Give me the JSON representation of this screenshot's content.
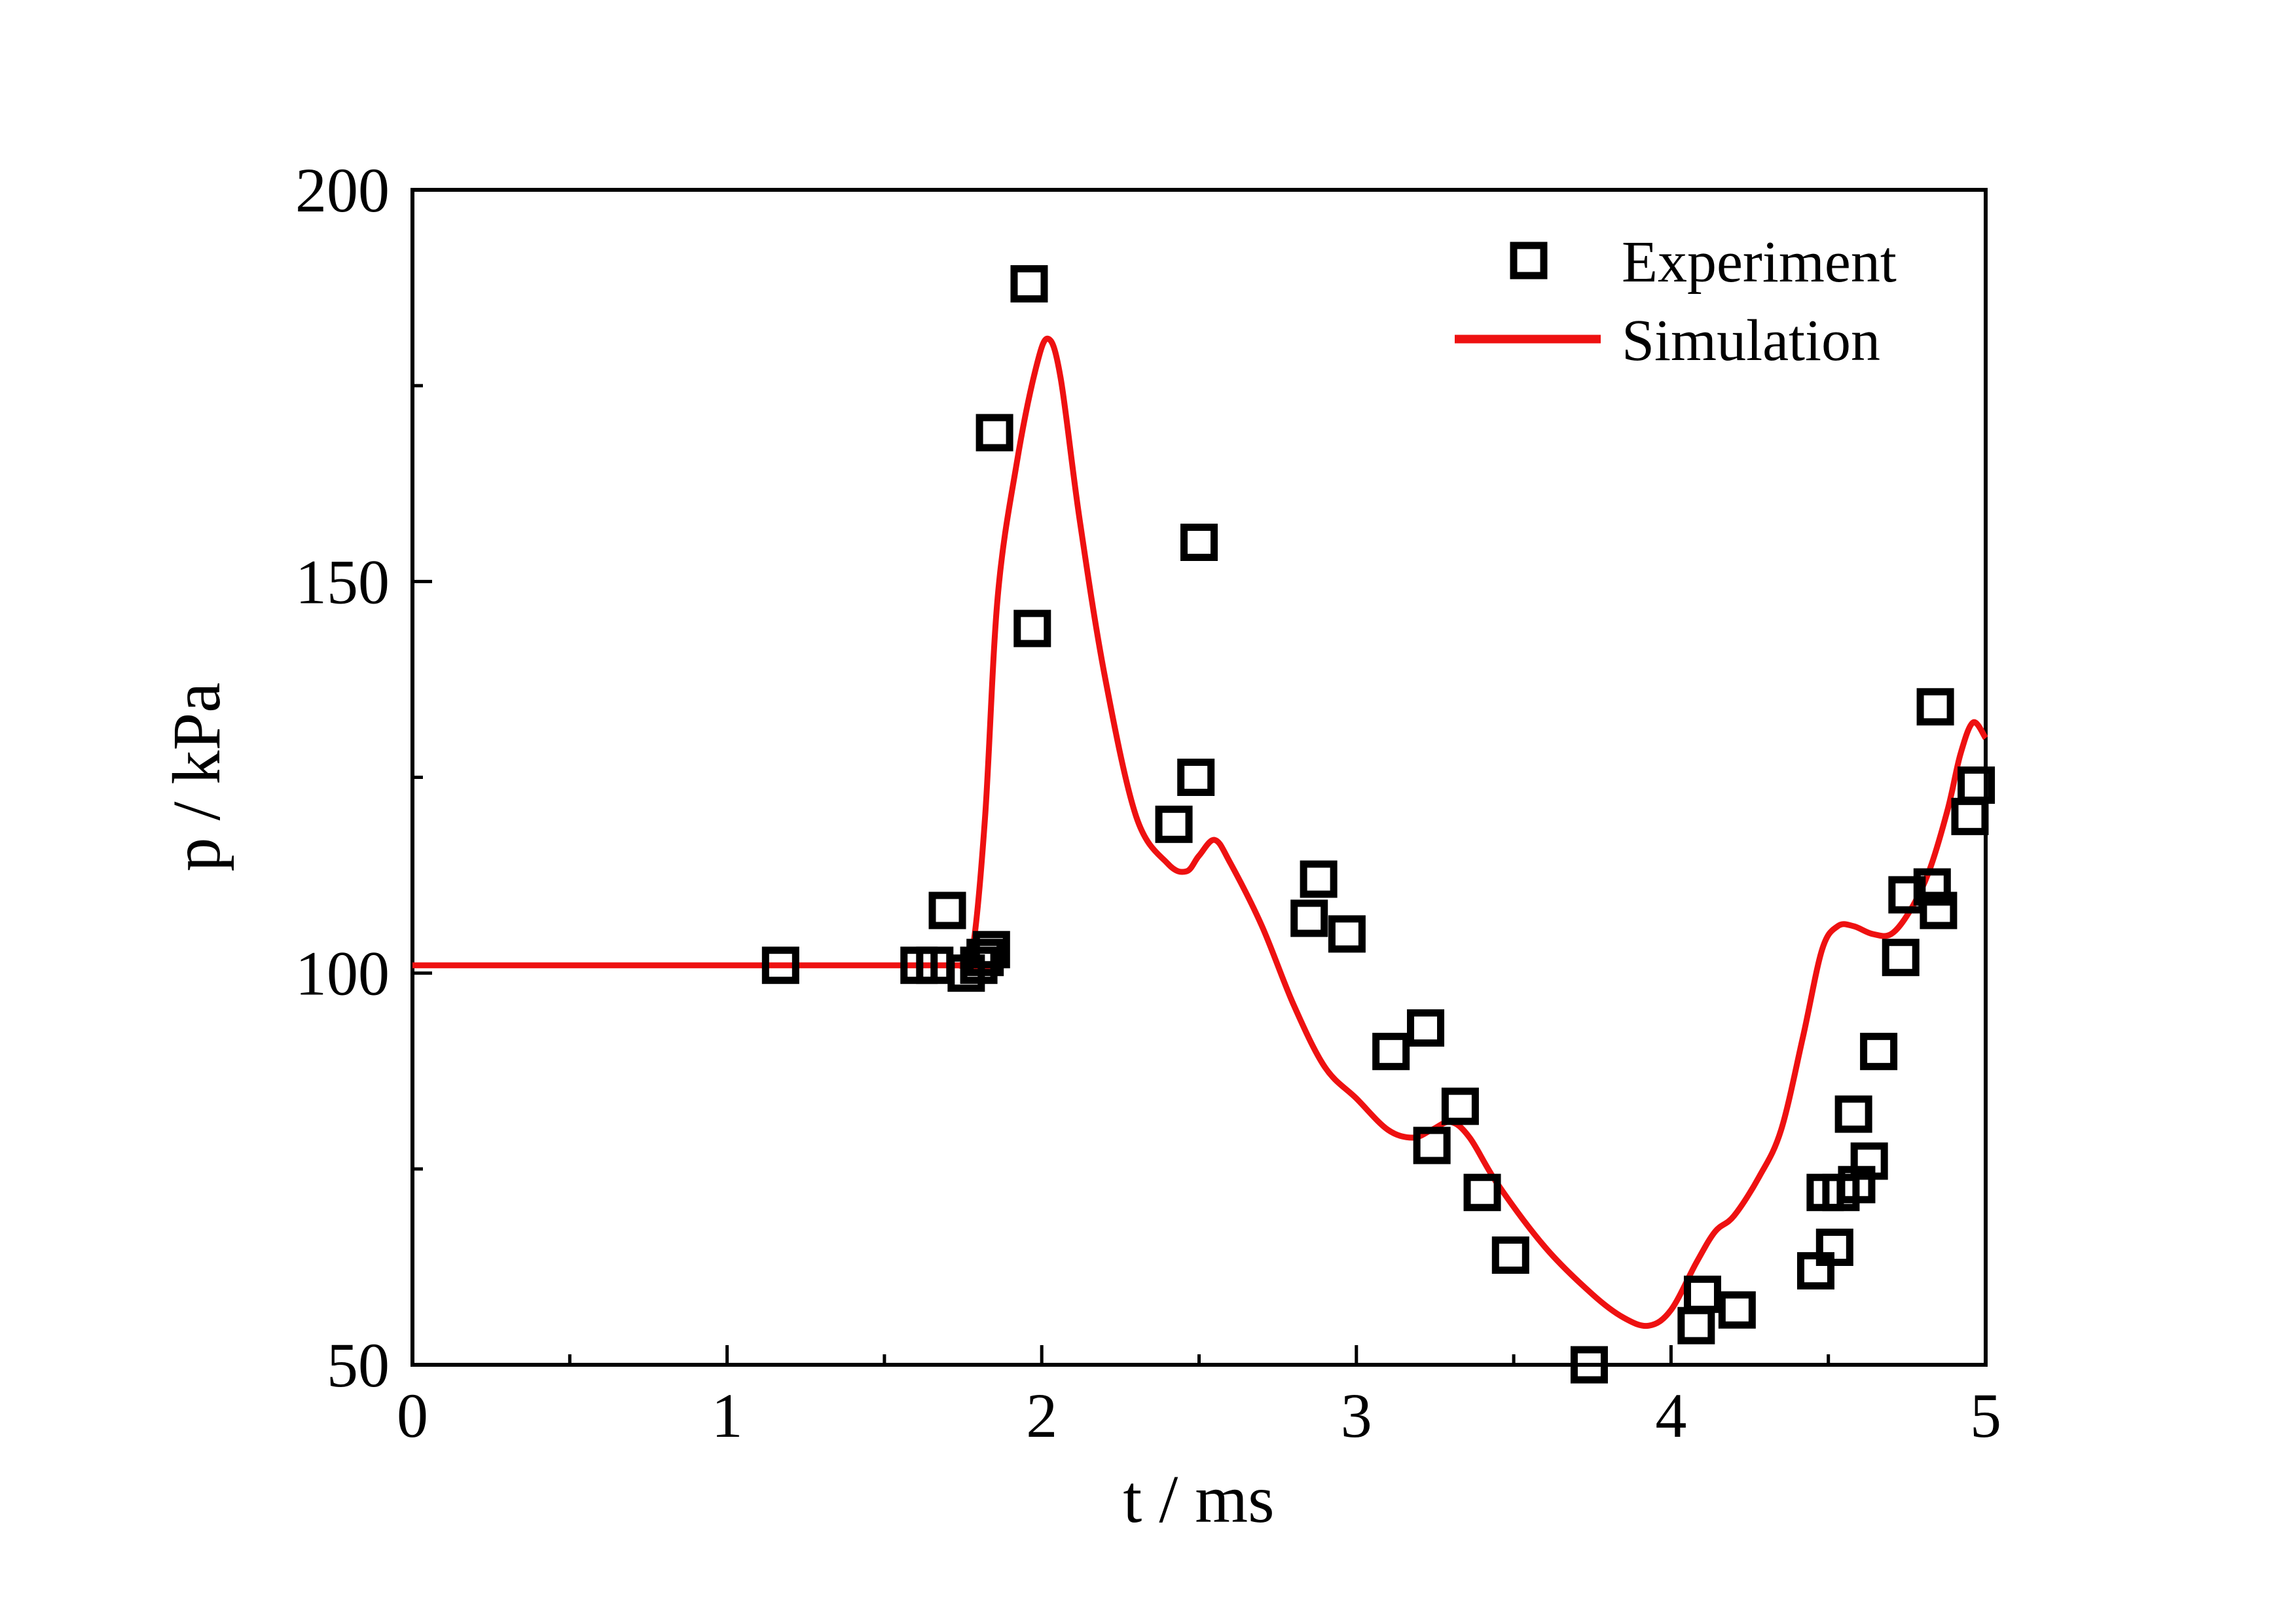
{
  "chart_data": {
    "type": "scatter+line",
    "title": "",
    "xlabel": "t / ms",
    "ylabel": "p / kPa",
    "xlim": [
      0,
      5
    ],
    "ylim": [
      50,
      200
    ],
    "x_ticks": [
      0,
      1,
      2,
      3,
      4,
      5
    ],
    "y_ticks": [
      50,
      100,
      150,
      200
    ],
    "x_minor_ticks": [
      0.5,
      1.5,
      2.5,
      3.5,
      4.5
    ],
    "y_minor_ticks": [
      75,
      125,
      175
    ],
    "grid": false,
    "legend_position": "top-right",
    "colors": {
      "experiment": "#000000",
      "simulation": "#ee1111"
    },
    "series": [
      {
        "name": "Experiment",
        "kind": "scatter",
        "marker": "open-square",
        "x": [
          1.17,
          1.61,
          1.66,
          1.7,
          1.76,
          1.8,
          1.82,
          1.84,
          1.85,
          1.96,
          1.97,
          2.42,
          2.49,
          2.5,
          2.85,
          2.88,
          2.97,
          3.11,
          3.22,
          3.24,
          3.33,
          3.4,
          3.49,
          3.74,
          4.08,
          4.1,
          4.21,
          4.46,
          4.49,
          4.52,
          4.54,
          4.58,
          4.59,
          4.63,
          4.66,
          4.73,
          4.75,
          4.83,
          4.84,
          4.85,
          4.95,
          4.97
        ],
        "y": [
          101,
          101,
          101,
          108,
          100,
          101,
          102,
          103,
          169,
          188,
          144,
          119,
          125,
          155,
          107,
          112,
          105,
          90,
          93,
          78,
          83,
          72,
          64,
          50,
          55,
          59,
          57,
          62,
          72,
          65,
          72,
          82,
          73,
          76,
          90,
          102,
          110,
          111,
          134,
          108,
          120,
          124
        ]
      },
      {
        "name": "Simulation",
        "kind": "line",
        "x": [
          0,
          1.7,
          1.74,
          1.78,
          1.82,
          1.86,
          1.92,
          1.98,
          2.02,
          2.06,
          2.12,
          2.2,
          2.3,
          2.4,
          2.46,
          2.5,
          2.55,
          2.6,
          2.7,
          2.8,
          2.9,
          3.0,
          3.1,
          3.18,
          3.24,
          3.3,
          3.36,
          3.45,
          3.6,
          3.75,
          3.85,
          3.93,
          4.0,
          4.08,
          4.14,
          4.2,
          4.28,
          4.35,
          4.42,
          4.48,
          4.53,
          4.58,
          4.64,
          4.7,
          4.76,
          4.82,
          4.88,
          4.92,
          4.96,
          5.0
        ],
        "y": [
          101,
          101,
          101,
          103,
          120,
          148,
          165,
          177,
          181,
          176,
          158,
          138,
          120,
          114,
          113,
          115,
          117,
          114,
          106,
          96,
          88,
          84,
          80,
          79,
          80,
          81,
          79,
          73,
          65,
          59,
          56,
          55,
          57,
          63,
          67,
          69,
          74,
          80,
          92,
          103,
          106,
          106,
          105,
          105,
          108,
          113,
          121,
          128,
          132,
          130
        ]
      }
    ]
  }
}
